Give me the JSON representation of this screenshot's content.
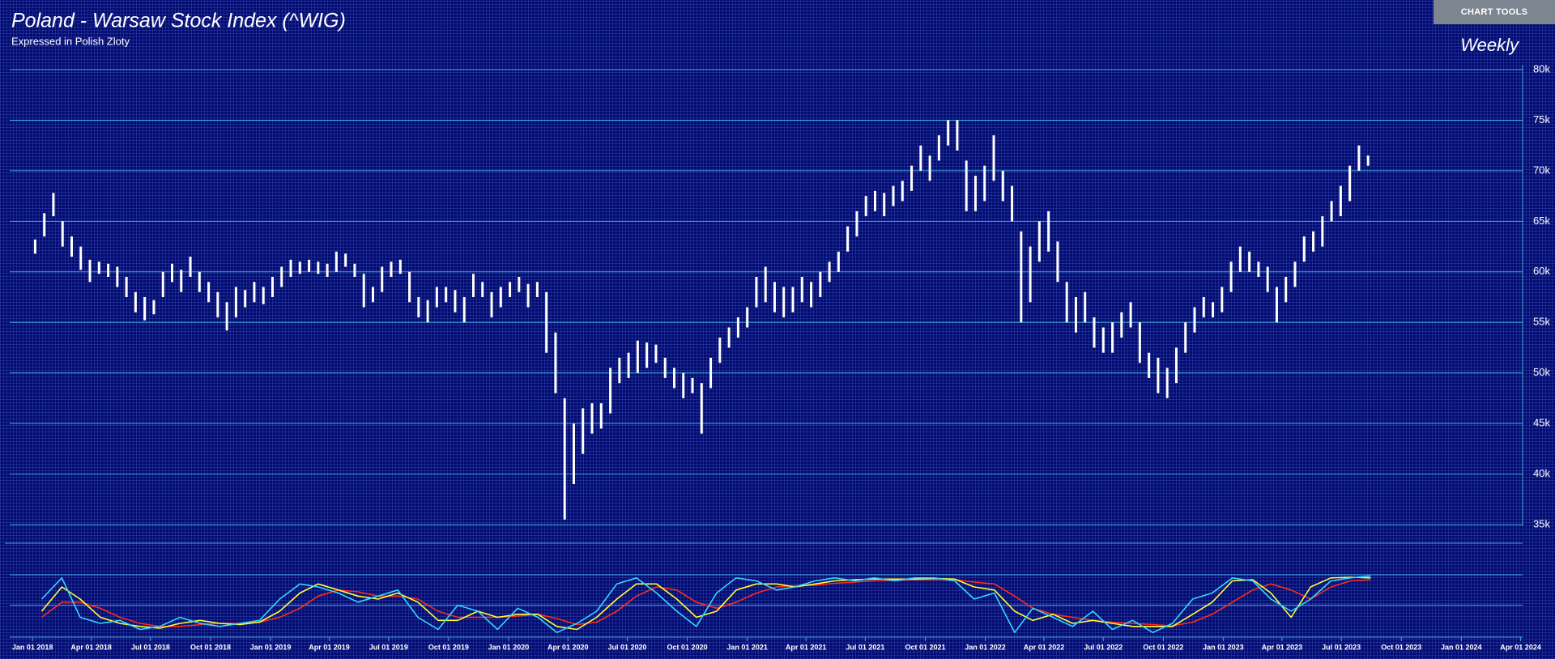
{
  "toolbar": {
    "button": "CHART TOOLS"
  },
  "chart_data": [
    {
      "type": "ohlc",
      "title": "Poland - Warsaw Stock Index (^WIG)",
      "subtitle": "Expressed in Polish Zloty",
      "interval": "Weekly",
      "color": "#ffffff",
      "grid_color": "#3fa8dc",
      "xlim": [
        "2017-11-27",
        "2024-04-04"
      ],
      "ylim": [
        35000,
        80000
      ],
      "yticks": [
        {
          "value": 35000,
          "label": "35k"
        },
        {
          "value": 40000,
          "label": "40k"
        },
        {
          "value": 45000,
          "label": "45k"
        },
        {
          "value": 50000,
          "label": "50k"
        },
        {
          "value": 55000,
          "label": "55k"
        },
        {
          "value": 60000,
          "label": "60k"
        },
        {
          "value": 65000,
          "label": "65k"
        },
        {
          "value": 70000,
          "label": "70k"
        },
        {
          "value": 75000,
          "label": "75k"
        },
        {
          "value": 80000,
          "label": "80k"
        }
      ],
      "x": [
        "2018-01-05",
        "2018-01-19",
        "2018-02-02",
        "2018-02-16",
        "2018-03-02",
        "2018-03-16",
        "2018-03-30",
        "2018-04-13",
        "2018-04-27",
        "2018-05-11",
        "2018-05-25",
        "2018-06-08",
        "2018-06-22",
        "2018-07-06",
        "2018-07-20",
        "2018-08-03",
        "2018-08-17",
        "2018-08-31",
        "2018-09-14",
        "2018-09-28",
        "2018-10-12",
        "2018-10-26",
        "2018-11-09",
        "2018-11-23",
        "2018-12-07",
        "2018-12-21",
        "2019-01-04",
        "2019-01-18",
        "2019-02-01",
        "2019-02-15",
        "2019-03-01",
        "2019-03-15",
        "2019-03-29",
        "2019-04-12",
        "2019-04-26",
        "2019-05-10",
        "2019-05-24",
        "2019-06-07",
        "2019-06-21",
        "2019-07-05",
        "2019-07-19",
        "2019-08-02",
        "2019-08-16",
        "2019-08-30",
        "2019-09-13",
        "2019-09-27",
        "2019-10-11",
        "2019-10-25",
        "2019-11-08",
        "2019-11-22",
        "2019-12-06",
        "2019-12-20",
        "2020-01-03",
        "2020-01-17",
        "2020-01-31",
        "2020-02-14",
        "2020-02-28",
        "2020-03-13",
        "2020-03-27",
        "2020-04-10",
        "2020-04-24",
        "2020-05-08",
        "2020-05-22",
        "2020-06-05",
        "2020-06-19",
        "2020-07-03",
        "2020-07-17",
        "2020-07-31",
        "2020-08-14",
        "2020-08-28",
        "2020-09-11",
        "2020-09-25",
        "2020-10-09",
        "2020-10-23",
        "2020-11-06",
        "2020-11-20",
        "2020-12-04",
        "2020-12-18",
        "2021-01-01",
        "2021-01-15",
        "2021-01-29",
        "2021-02-12",
        "2021-02-26",
        "2021-03-12",
        "2021-03-26",
        "2021-04-09",
        "2021-04-23",
        "2021-05-07",
        "2021-05-21",
        "2021-06-04",
        "2021-06-18",
        "2021-07-02",
        "2021-07-16",
        "2021-07-30",
        "2021-08-13",
        "2021-08-27",
        "2021-09-10",
        "2021-09-24",
        "2021-10-08",
        "2021-10-22",
        "2021-11-05",
        "2021-11-19",
        "2021-12-03",
        "2021-12-17",
        "2021-12-31",
        "2022-01-14",
        "2022-01-28",
        "2022-02-11",
        "2022-02-25",
        "2022-03-11",
        "2022-03-25",
        "2022-04-08",
        "2022-04-22",
        "2022-05-06",
        "2022-05-20",
        "2022-06-03",
        "2022-06-17",
        "2022-07-01",
        "2022-07-15",
        "2022-07-29",
        "2022-08-12",
        "2022-08-26",
        "2022-09-09",
        "2022-09-23",
        "2022-10-07",
        "2022-10-21",
        "2022-11-04",
        "2022-11-18",
        "2022-12-02",
        "2022-12-16",
        "2022-12-30",
        "2023-01-13",
        "2023-01-27",
        "2023-02-10",
        "2023-02-24",
        "2023-03-10",
        "2023-03-24",
        "2023-04-07",
        "2023-04-21",
        "2023-05-05",
        "2023-05-19",
        "2023-06-02",
        "2023-06-16",
        "2023-06-30",
        "2023-07-14",
        "2023-07-28",
        "2023-08-11"
      ],
      "high": [
        63200,
        65800,
        67800,
        65000,
        63500,
        62500,
        61200,
        61000,
        60800,
        60500,
        59500,
        58000,
        57500,
        57200,
        60000,
        60800,
        60200,
        61500,
        60000,
        59000,
        58000,
        57000,
        58500,
        58200,
        59000,
        58500,
        59500,
        60500,
        61200,
        61000,
        61200,
        61000,
        60800,
        62000,
        61800,
        60800,
        59800,
        58500,
        60500,
        61000,
        61200,
        60000,
        57500,
        57200,
        58500,
        58500,
        58200,
        57500,
        59800,
        59000,
        58000,
        58500,
        59000,
        59500,
        58800,
        59000,
        58000,
        54000,
        47500,
        45000,
        46500,
        47000,
        47000,
        50500,
        51500,
        52000,
        53200,
        53000,
        52800,
        51500,
        50500,
        50000,
        49500,
        49000,
        51500,
        53500,
        54500,
        55500,
        56500,
        59500,
        60500,
        59000,
        58500,
        58500,
        59500,
        59000,
        60000,
        61000,
        62000,
        64500,
        66000,
        67500,
        68000,
        67800,
        68500,
        69000,
        70500,
        72500,
        71500,
        73500,
        75000,
        75000,
        71000,
        69500,
        70500,
        73500,
        70000,
        68500,
        64000,
        62500,
        65000,
        66000,
        63000,
        59000,
        57500,
        58000,
        55500,
        54500,
        55000,
        56000,
        57000,
        55000,
        52000,
        51500,
        50500,
        52500,
        55000,
        56500,
        57500,
        57000,
        58500,
        61000,
        62500,
        62000,
        61000,
        60500,
        58500,
        59500,
        61000,
        63500,
        64000,
        65500,
        67000,
        68500,
        70500,
        72500,
        71500
      ],
      "low": [
        61800,
        63500,
        65500,
        62500,
        61500,
        60200,
        59000,
        59800,
        59500,
        58500,
        57500,
        56000,
        55200,
        55800,
        57500,
        59000,
        58000,
        59500,
        58000,
        57000,
        55500,
        54200,
        55500,
        56500,
        57000,
        56800,
        57500,
        58500,
        59500,
        59800,
        60000,
        59800,
        59500,
        60000,
        60500,
        59500,
        56500,
        57000,
        58000,
        59500,
        59800,
        57000,
        55500,
        55000,
        56500,
        57000,
        56000,
        55000,
        57500,
        57500,
        55500,
        56500,
        57500,
        58000,
        56500,
        57500,
        52000,
        48000,
        35500,
        39000,
        42000,
        44000,
        44500,
        46000,
        49000,
        49500,
        50000,
        50500,
        51000,
        49500,
        48500,
        47500,
        48000,
        44000,
        48500,
        51000,
        52500,
        53500,
        54500,
        56500,
        57000,
        56000,
        55500,
        56000,
        57000,
        56500,
        57500,
        59000,
        60000,
        62000,
        63500,
        65500,
        66000,
        65500,
        66500,
        67000,
        68000,
        70000,
        69000,
        71000,
        72500,
        72000,
        66000,
        66000,
        67000,
        69000,
        67000,
        65000,
        55000,
        57000,
        61000,
        62000,
        59000,
        55000,
        54000,
        55000,
        52500,
        52000,
        52000,
        53500,
        54500,
        51000,
        49500,
        48000,
        47500,
        49000,
        52000,
        54000,
        55500,
        55500,
        56000,
        58000,
        60000,
        60000,
        59500,
        58000,
        55000,
        57000,
        58500,
        61000,
        62000,
        62500,
        65000,
        65500,
        67000,
        70000,
        70500
      ]
    },
    {
      "type": "line",
      "xlim": [
        "2017-11-27",
        "2024-04-04"
      ],
      "ylim": [
        0,
        100
      ],
      "levels": [
        50,
        100
      ],
      "level_color": "#3fa8dc",
      "xticks": [
        {
          "value": "2018-01-01",
          "label": "Jan 01 2018"
        },
        {
          "value": "2018-04-01",
          "label": "Apr 01 2018"
        },
        {
          "value": "2018-07-01",
          "label": "Jul 01 2018"
        },
        {
          "value": "2018-10-01",
          "label": "Oct 01 2018"
        },
        {
          "value": "2019-01-01",
          "label": "Jan 01 2019"
        },
        {
          "value": "2019-04-01",
          "label": "Apr 01 2019"
        },
        {
          "value": "2019-07-01",
          "label": "Jul 01 2019"
        },
        {
          "value": "2019-10-01",
          "label": "Oct 01 2019"
        },
        {
          "value": "2020-01-01",
          "label": "Jan 01 2020"
        },
        {
          "value": "2020-04-01",
          "label": "Apr 01 2020"
        },
        {
          "value": "2020-07-01",
          "label": "Jul 01 2020"
        },
        {
          "value": "2020-10-01",
          "label": "Oct 01 2020"
        },
        {
          "value": "2021-01-01",
          "label": "Jan 01 2021"
        },
        {
          "value": "2021-04-01",
          "label": "Apr 01 2021"
        },
        {
          "value": "2021-07-01",
          "label": "Jul 01 2021"
        },
        {
          "value": "2021-10-01",
          "label": "Oct 01 2021"
        },
        {
          "value": "2022-01-01",
          "label": "Jan 01 2022"
        },
        {
          "value": "2022-04-01",
          "label": "Apr 01 2022"
        },
        {
          "value": "2022-07-01",
          "label": "Jul 01 2022"
        },
        {
          "value": "2022-10-01",
          "label": "Oct 01 2022"
        },
        {
          "value": "2023-01-01",
          "label": "Jan 01 2023"
        },
        {
          "value": "2023-04-01",
          "label": "Apr 01 2023"
        },
        {
          "value": "2023-07-01",
          "label": "Jul 01 2023"
        },
        {
          "value": "2023-10-01",
          "label": "Oct 01 2023"
        },
        {
          "value": "2024-01-01",
          "label": "Jan 01 2024"
        },
        {
          "value": "2024-04-01",
          "label": "Apr 01 2024"
        }
      ],
      "x": [
        "2018-01-15",
        "2018-02-15",
        "2018-03-15",
        "2018-04-15",
        "2018-05-15",
        "2018-06-15",
        "2018-07-15",
        "2018-08-15",
        "2018-09-15",
        "2018-10-15",
        "2018-11-15",
        "2018-12-15",
        "2019-01-15",
        "2019-02-15",
        "2019-03-15",
        "2019-04-15",
        "2019-05-15",
        "2019-06-15",
        "2019-07-15",
        "2019-08-15",
        "2019-09-15",
        "2019-10-15",
        "2019-11-15",
        "2019-12-15",
        "2020-01-15",
        "2020-02-15",
        "2020-03-15",
        "2020-04-15",
        "2020-05-15",
        "2020-06-15",
        "2020-07-15",
        "2020-08-15",
        "2020-09-15",
        "2020-10-15",
        "2020-11-15",
        "2020-12-15",
        "2021-01-15",
        "2021-02-15",
        "2021-03-15",
        "2021-04-15",
        "2021-05-15",
        "2021-06-15",
        "2021-07-15",
        "2021-08-15",
        "2021-09-15",
        "2021-10-15",
        "2021-11-15",
        "2021-12-15",
        "2022-01-15",
        "2022-02-15",
        "2022-03-15",
        "2022-04-15",
        "2022-05-15",
        "2022-06-15",
        "2022-07-15",
        "2022-08-15",
        "2022-09-15",
        "2022-10-15",
        "2022-11-15",
        "2022-12-15",
        "2023-01-15",
        "2023-02-15",
        "2023-03-15",
        "2023-04-15",
        "2023-05-15",
        "2023-06-15",
        "2023-07-15",
        "2023-08-15"
      ],
      "series": [
        {
          "color": "#ff2a1a",
          "values": [
            30,
            55,
            55,
            45,
            30,
            20,
            15,
            15,
            18,
            20,
            20,
            22,
            30,
            45,
            65,
            75,
            72,
            65,
            65,
            60,
            40,
            30,
            30,
            30,
            32,
            35,
            28,
            18,
            22,
            40,
            65,
            80,
            75,
            55,
            45,
            55,
            70,
            80,
            82,
            83,
            86,
            88,
            90,
            91,
            92,
            92,
            92,
            88,
            85,
            65,
            45,
            35,
            30,
            25,
            22,
            20,
            18,
            16,
            22,
            35,
            55,
            75,
            85,
            75,
            60,
            80,
            90,
            92
          ]
        },
        {
          "color": "#ffff33",
          "values": [
            40,
            80,
            60,
            30,
            20,
            15,
            12,
            20,
            25,
            20,
            18,
            22,
            40,
            70,
            85,
            75,
            65,
            60,
            70,
            55,
            25,
            25,
            40,
            30,
            35,
            35,
            15,
            10,
            30,
            60,
            85,
            85,
            60,
            30,
            40,
            75,
            85,
            85,
            80,
            85,
            90,
            92,
            93,
            93,
            93,
            94,
            93,
            80,
            75,
            40,
            25,
            35,
            20,
            25,
            20,
            15,
            15,
            15,
            35,
            55,
            90,
            92,
            70,
            30,
            80,
            95,
            96,
            95
          ]
        },
        {
          "color": "#33d6ff",
          "values": [
            60,
            95,
            30,
            20,
            25,
            10,
            15,
            30,
            20,
            15,
            20,
            25,
            60,
            85,
            80,
            70,
            55,
            65,
            75,
            30,
            10,
            50,
            40,
            10,
            45,
            30,
            5,
            20,
            40,
            85,
            95,
            70,
            40,
            15,
            70,
            95,
            90,
            75,
            80,
            90,
            95,
            90,
            95,
            90,
            95,
            95,
            90,
            60,
            70,
            5,
            45,
            30,
            15,
            40,
            10,
            25,
            5,
            20,
            60,
            70,
            95,
            90,
            60,
            40,
            60,
            90,
            95,
            98
          ]
        }
      ]
    }
  ]
}
